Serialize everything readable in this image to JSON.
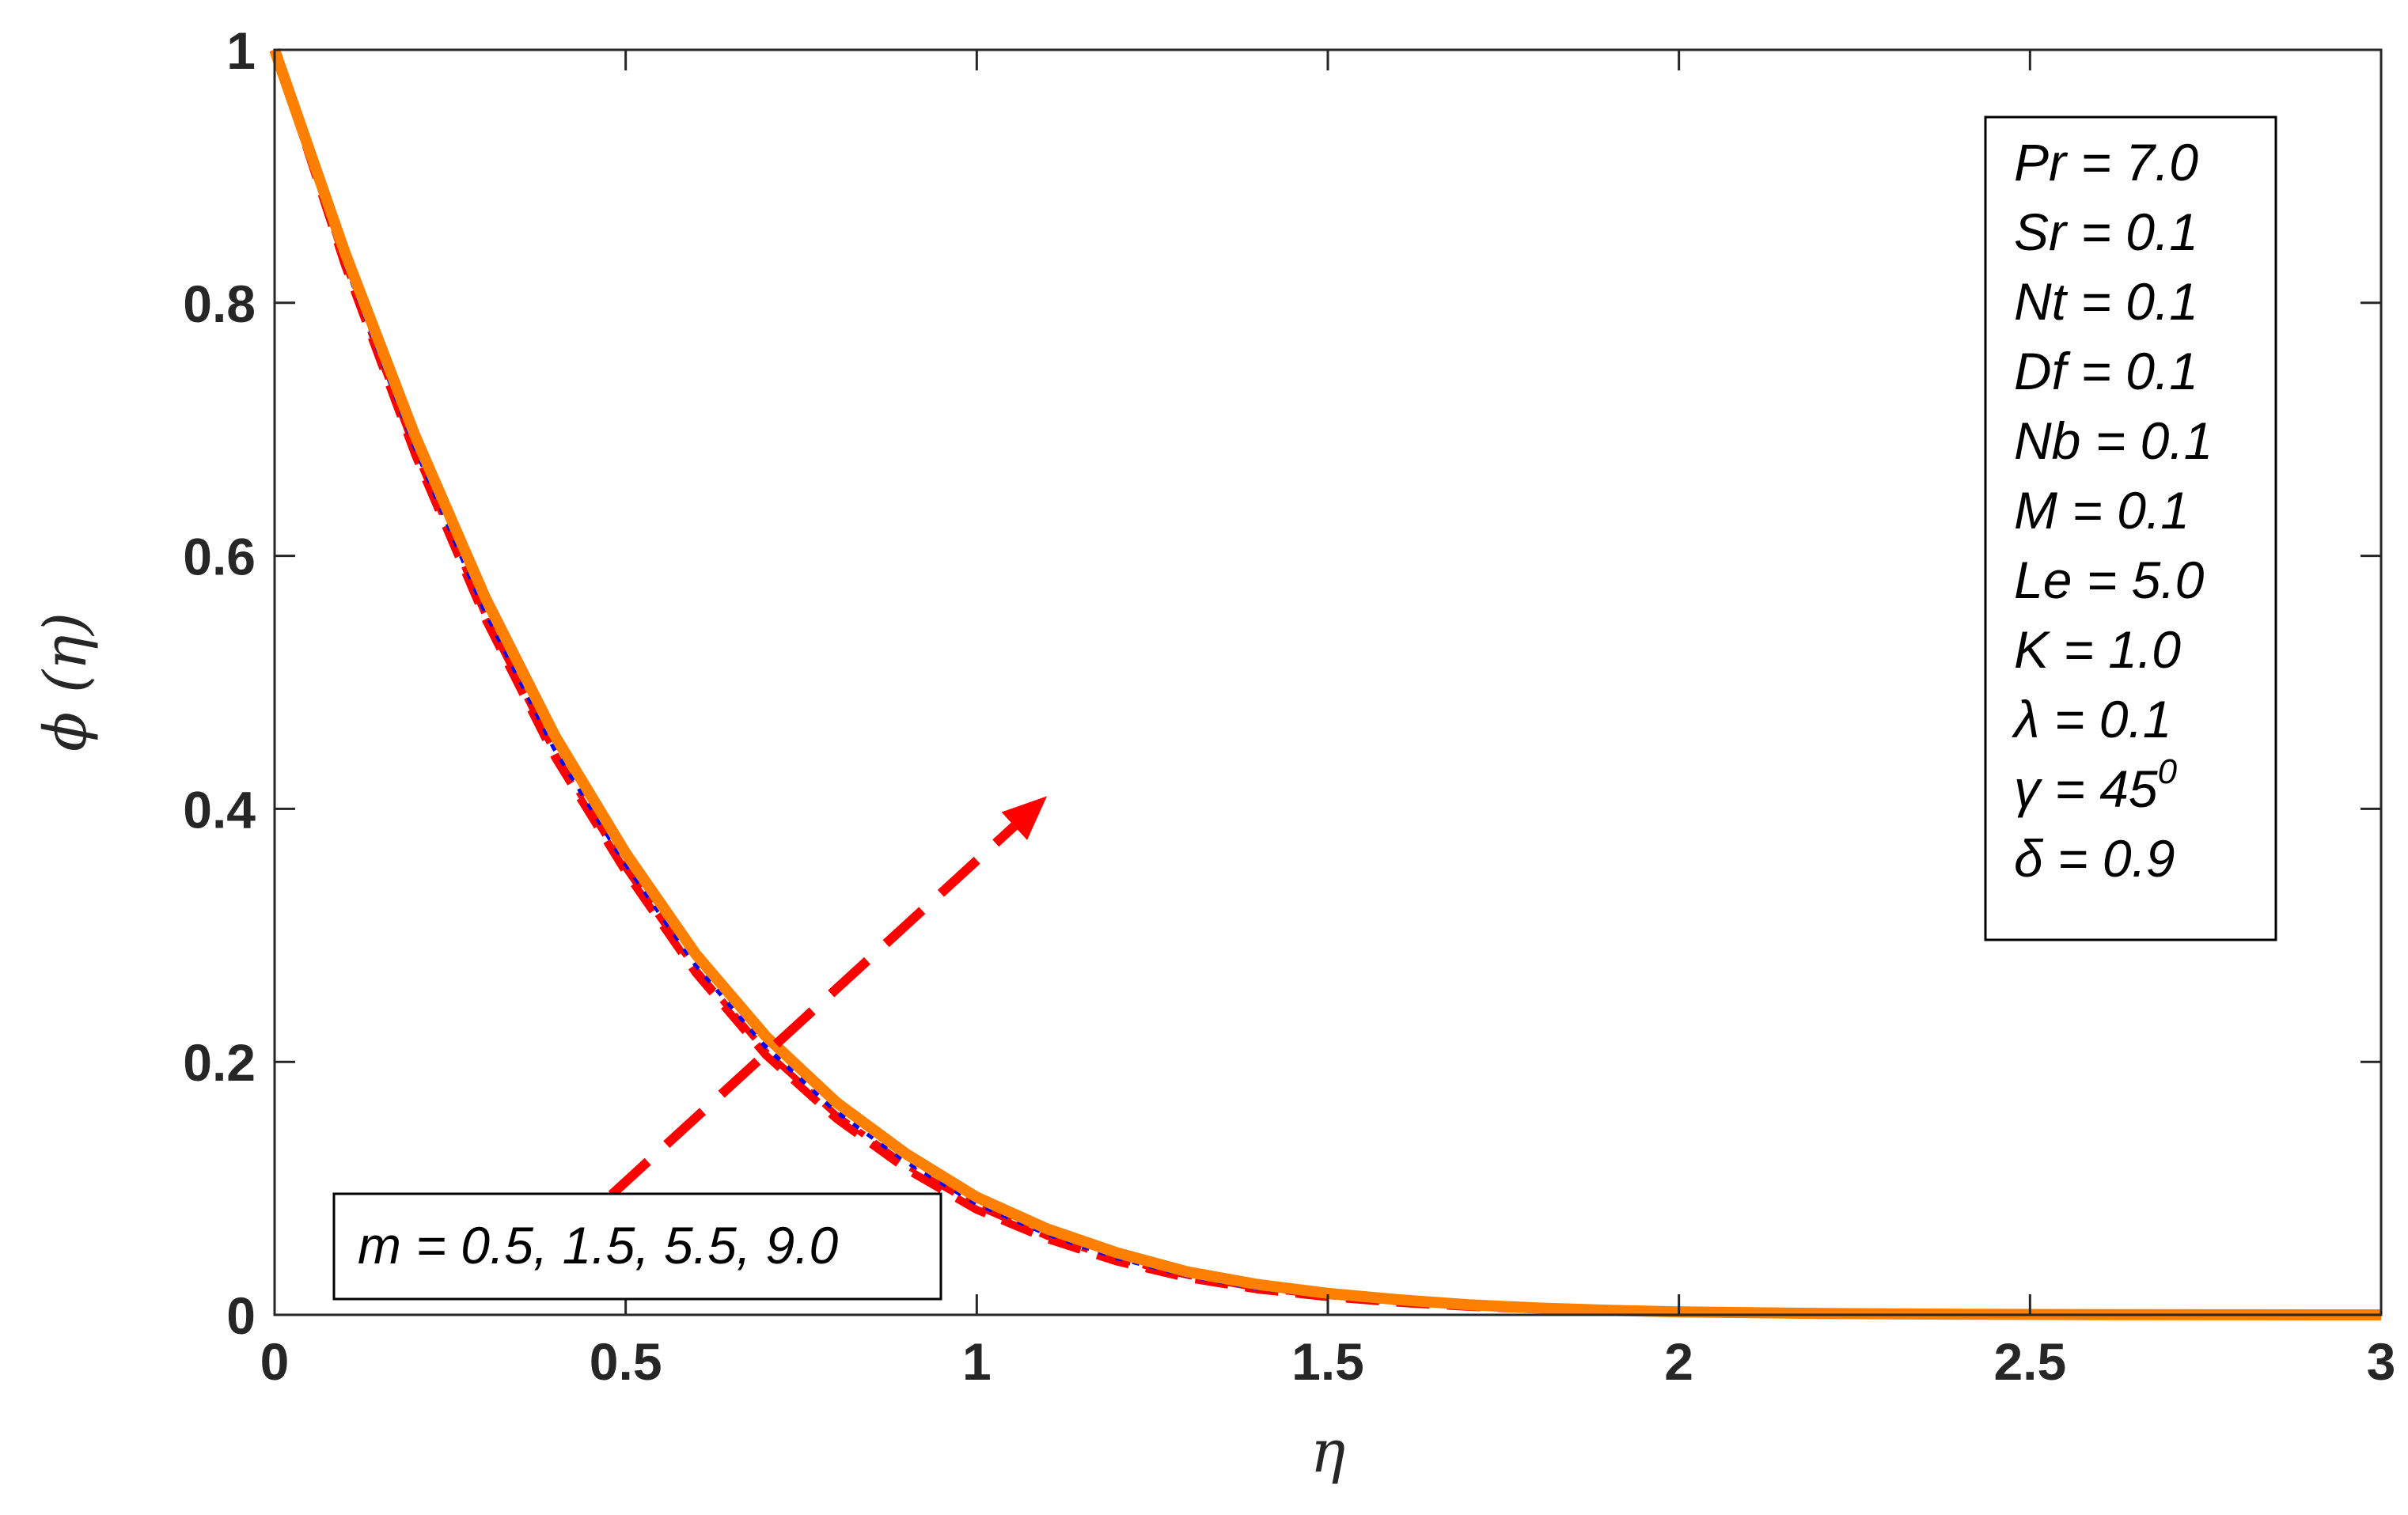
{
  "chart_data": {
    "type": "line",
    "xlabel": "η",
    "ylabel": "ϕ (η)",
    "xlim": [
      0,
      3
    ],
    "ylim": [
      0,
      1
    ],
    "xticks": [
      0,
      0.5,
      1,
      1.5,
      2,
      2.5,
      3
    ],
    "xtick_labels": [
      "0",
      "0.5",
      "1",
      "1.5",
      "2",
      "2.5",
      "3"
    ],
    "yticks": [
      0,
      0.2,
      0.4,
      0.6,
      0.8,
      1
    ],
    "ytick_labels": [
      "0",
      "0.2",
      "0.4",
      "0.6",
      "0.8",
      "1"
    ],
    "grid": false,
    "x": [
      0,
      0.1,
      0.2,
      0.3,
      0.4,
      0.5,
      0.6,
      0.7,
      0.8,
      0.9,
      1.0,
      1.1,
      1.2,
      1.3,
      1.4,
      1.5,
      1.6,
      1.7,
      1.8,
      1.9,
      2.0,
      2.2,
      2.4,
      2.6,
      2.8,
      3.0
    ],
    "series": [
      {
        "style": "dashed",
        "color": "#ff0000",
        "values": [
          1.0,
          0.83,
          0.68,
          0.55,
          0.44,
          0.35,
          0.27,
          0.205,
          0.155,
          0.115,
          0.083,
          0.06,
          0.042,
          0.029,
          0.02,
          0.014,
          0.0095,
          0.0063,
          0.0042,
          0.0028,
          0.0018,
          0.0008,
          0.0003,
          0.0001,
          5e-05,
          0.0
        ]
      },
      {
        "style": "dashdot",
        "color": "#ff0000",
        "values": [
          1.0,
          0.832,
          0.683,
          0.553,
          0.443,
          0.353,
          0.273,
          0.208,
          0.158,
          0.118,
          0.086,
          0.062,
          0.044,
          0.031,
          0.021,
          0.015,
          0.01,
          0.0067,
          0.0045,
          0.003,
          0.002,
          0.0009,
          0.0004,
          0.00015,
          6e-05,
          0.0
        ]
      },
      {
        "style": "dotted",
        "color": "#0000ff",
        "values": [
          1.0,
          0.835,
          0.688,
          0.558,
          0.448,
          0.358,
          0.278,
          0.213,
          0.162,
          0.122,
          0.089,
          0.065,
          0.046,
          0.032,
          0.022,
          0.0155,
          0.0105,
          0.007,
          0.0047,
          0.0031,
          0.0021,
          0.001,
          0.0004,
          0.00015,
          6e-05,
          0.0
        ]
      },
      {
        "style": "solid",
        "color": "#ff8000",
        "values": [
          1.0,
          0.84,
          0.695,
          0.567,
          0.457,
          0.365,
          0.285,
          0.22,
          0.168,
          0.127,
          0.093,
          0.068,
          0.049,
          0.034,
          0.024,
          0.017,
          0.012,
          0.008,
          0.0054,
          0.0036,
          0.0024,
          0.0011,
          0.0005,
          0.0002,
          8e-05,
          0.0
        ]
      }
    ],
    "arrow": {
      "from": [
        0.48,
        0.095
      ],
      "to": [
        1.1,
        0.41
      ],
      "color": "#ff0000"
    },
    "annotation_box": {
      "position": "top-right",
      "lines": [
        {
          "text": "Pr = 7.0"
        },
        {
          "text": "Sr = 0.1"
        },
        {
          "text": "Nt = 0.1"
        },
        {
          "text": "Df = 0.1"
        },
        {
          "text": "Nb = 0.1"
        },
        {
          "text": "M = 0.1"
        },
        {
          "text": "Le = 5.0"
        },
        {
          "text": "K = 1.0"
        },
        {
          "text": "λ = 0.1"
        },
        {
          "text": "γ = 45",
          "sup": "0"
        },
        {
          "text": "δ = 0.9"
        }
      ]
    },
    "param_box": {
      "position": "bottom-left",
      "text": "m = 0.5, 1.5, 5.5, 9.0"
    }
  }
}
